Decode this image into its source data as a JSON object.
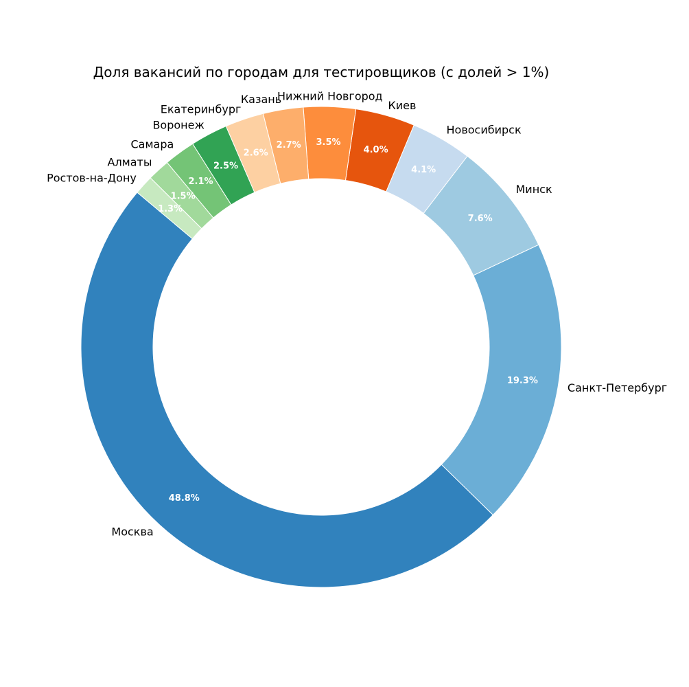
{
  "chart_data": {
    "type": "pie",
    "variant": "donut",
    "title": "Доля вакансий по городам для тестировщиков (с долей > 1%)",
    "labels": [
      "Москва",
      "Санкт-Петербург",
      "Минск",
      "Новосибирск",
      "Киев",
      "Нижний Новгород",
      "Казань",
      "Екатеринбург",
      "Воронеж",
      "Самара",
      "Алматы",
      "Ростов-на-Дону"
    ],
    "values": [
      48.8,
      19.3,
      7.6,
      4.1,
      4.0,
      3.5,
      2.7,
      2.6,
      2.5,
      2.1,
      1.5,
      1.3
    ],
    "pct_labels": [
      "48.8%",
      "19.3%",
      "7.6%",
      "4.1%",
      "4.0%",
      "3.5%",
      "2.7%",
      "2.6%",
      "2.5%",
      "2.1%",
      "1.5%",
      "1.3%"
    ],
    "colors": [
      "#3182bd",
      "#6baed6",
      "#9ecae1",
      "#c6dbef",
      "#e6550d",
      "#fd8d3c",
      "#fdae6b",
      "#fdd0a2",
      "#31a354",
      "#74c476",
      "#a1d99b",
      "#c7e9c0"
    ],
    "start_angle_deg": 140,
    "direction": "counterclockwise",
    "legend": "none"
  }
}
